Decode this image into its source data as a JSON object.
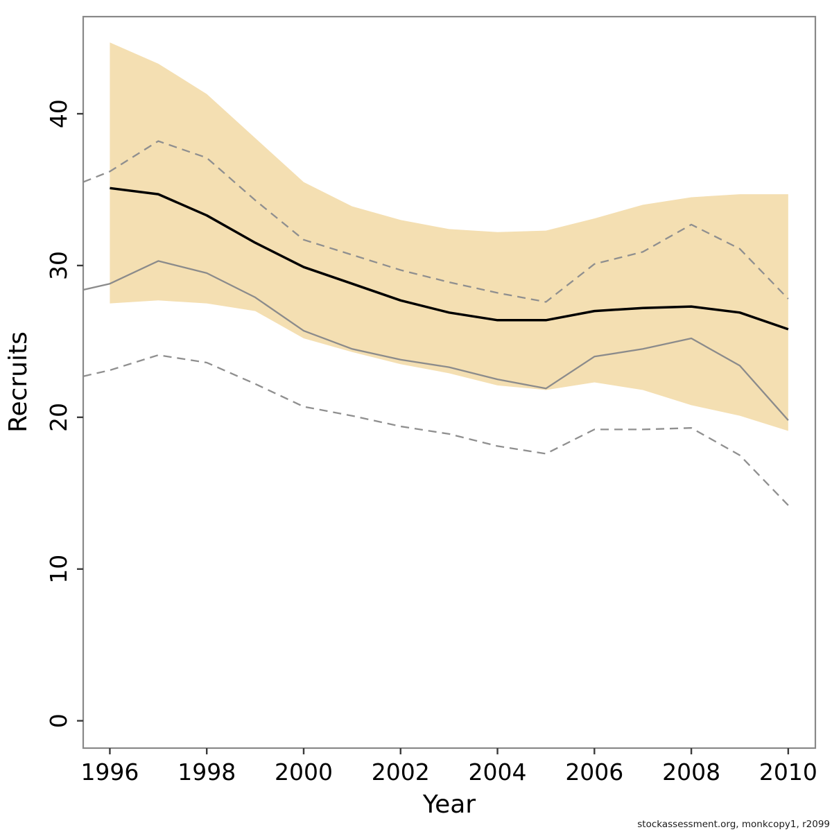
{
  "page": {
    "background": "#ffffff"
  },
  "footer": {
    "text": "stockassessment.org, monkcopy1, r2099"
  },
  "chart_data": {
    "type": "line",
    "title": "",
    "xlabel": "Year",
    "ylabel": "Recruits",
    "grid": false,
    "legend_position": "none",
    "x_tick_labels": [
      "1996",
      "1998",
      "2000",
      "2002",
      "2004",
      "2006",
      "2008",
      "2010"
    ],
    "x_tick_values": [
      1996,
      1998,
      2000,
      2002,
      2004,
      2006,
      2008,
      2010
    ],
    "y_tick_labels": [
      "0",
      "10",
      "20",
      "30",
      "40"
    ],
    "y_tick_values": [
      0,
      10,
      20,
      30,
      40
    ],
    "x_domain": [
      1995.45,
      2010.56
    ],
    "y_domain": [
      -1.8,
      46.4
    ],
    "band": {
      "name": "confidence-band",
      "color": "#F4DFB2",
      "x": [
        1996,
        1997,
        1998,
        1999,
        2000,
        2001,
        2002,
        2003,
        2004,
        2005,
        2006,
        2007,
        2008,
        2009,
        2010
      ],
      "high": [
        44.7,
        43.3,
        41.3,
        38.4,
        35.5,
        33.9,
        33.0,
        32.4,
        32.2,
        32.3,
        33.1,
        34.0,
        34.5,
        34.7,
        34.7
      ],
      "low": [
        27.5,
        27.7,
        27.5,
        27.0,
        25.2,
        24.3,
        23.5,
        22.9,
        22.1,
        21.8,
        22.3,
        21.8,
        20.8,
        20.1,
        19.1
      ]
    },
    "series": [
      {
        "name": "black-median-line",
        "style": "solid",
        "color": "#000000",
        "width": 3.5,
        "x": [
          1996,
          1997,
          1998,
          1999,
          2000,
          2001,
          2002,
          2003,
          2004,
          2005,
          2006,
          2007,
          2008,
          2009,
          2010
        ],
        "values": [
          35.1,
          34.7,
          33.3,
          31.5,
          29.9,
          28.8,
          27.7,
          26.9,
          26.4,
          26.4,
          27.0,
          27.2,
          27.3,
          26.9,
          25.8
        ]
      },
      {
        "name": "gray-solid-line",
        "style": "solid",
        "color": "#8B8B8B",
        "width": 2.3,
        "x": [
          1995.45,
          1996,
          1997,
          1998,
          1999,
          2000,
          2001,
          2002,
          2003,
          2004,
          2005,
          2006,
          2007,
          2008,
          2009,
          2010
        ],
        "values": [
          28.4,
          28.8,
          30.3,
          29.5,
          27.9,
          25.7,
          24.5,
          23.8,
          23.3,
          22.5,
          21.9,
          24.0,
          24.5,
          25.2,
          23.4,
          19.8
        ]
      },
      {
        "name": "gray-upper-dashed-line",
        "style": "dashed",
        "color": "#8F8F8F",
        "width": 2.3,
        "x": [
          1995.45,
          1996,
          1997,
          1998,
          1999,
          2000,
          2001,
          2002,
          2003,
          2004,
          2005,
          2006,
          2007,
          2008,
          2009,
          2010
        ],
        "values": [
          35.5,
          36.2,
          38.2,
          37.1,
          34.3,
          31.7,
          30.7,
          29.7,
          28.9,
          28.2,
          27.6,
          30.1,
          30.9,
          32.7,
          31.1,
          27.8
        ]
      },
      {
        "name": "gray-lower-dashed-line",
        "style": "dashed",
        "color": "#8F8F8F",
        "width": 2.3,
        "x": [
          1995.45,
          1996,
          1997,
          1998,
          1999,
          2000,
          2001,
          2002,
          2003,
          2004,
          2005,
          2006,
          2007,
          2008,
          2009,
          2010
        ],
        "values": [
          22.7,
          23.1,
          24.1,
          23.6,
          22.2,
          20.7,
          20.1,
          19.4,
          18.9,
          18.1,
          17.6,
          19.2,
          19.2,
          19.3,
          17.5,
          14.2
        ]
      }
    ],
    "box_color": "#888888",
    "tick_color": "#3a3a3a"
  }
}
